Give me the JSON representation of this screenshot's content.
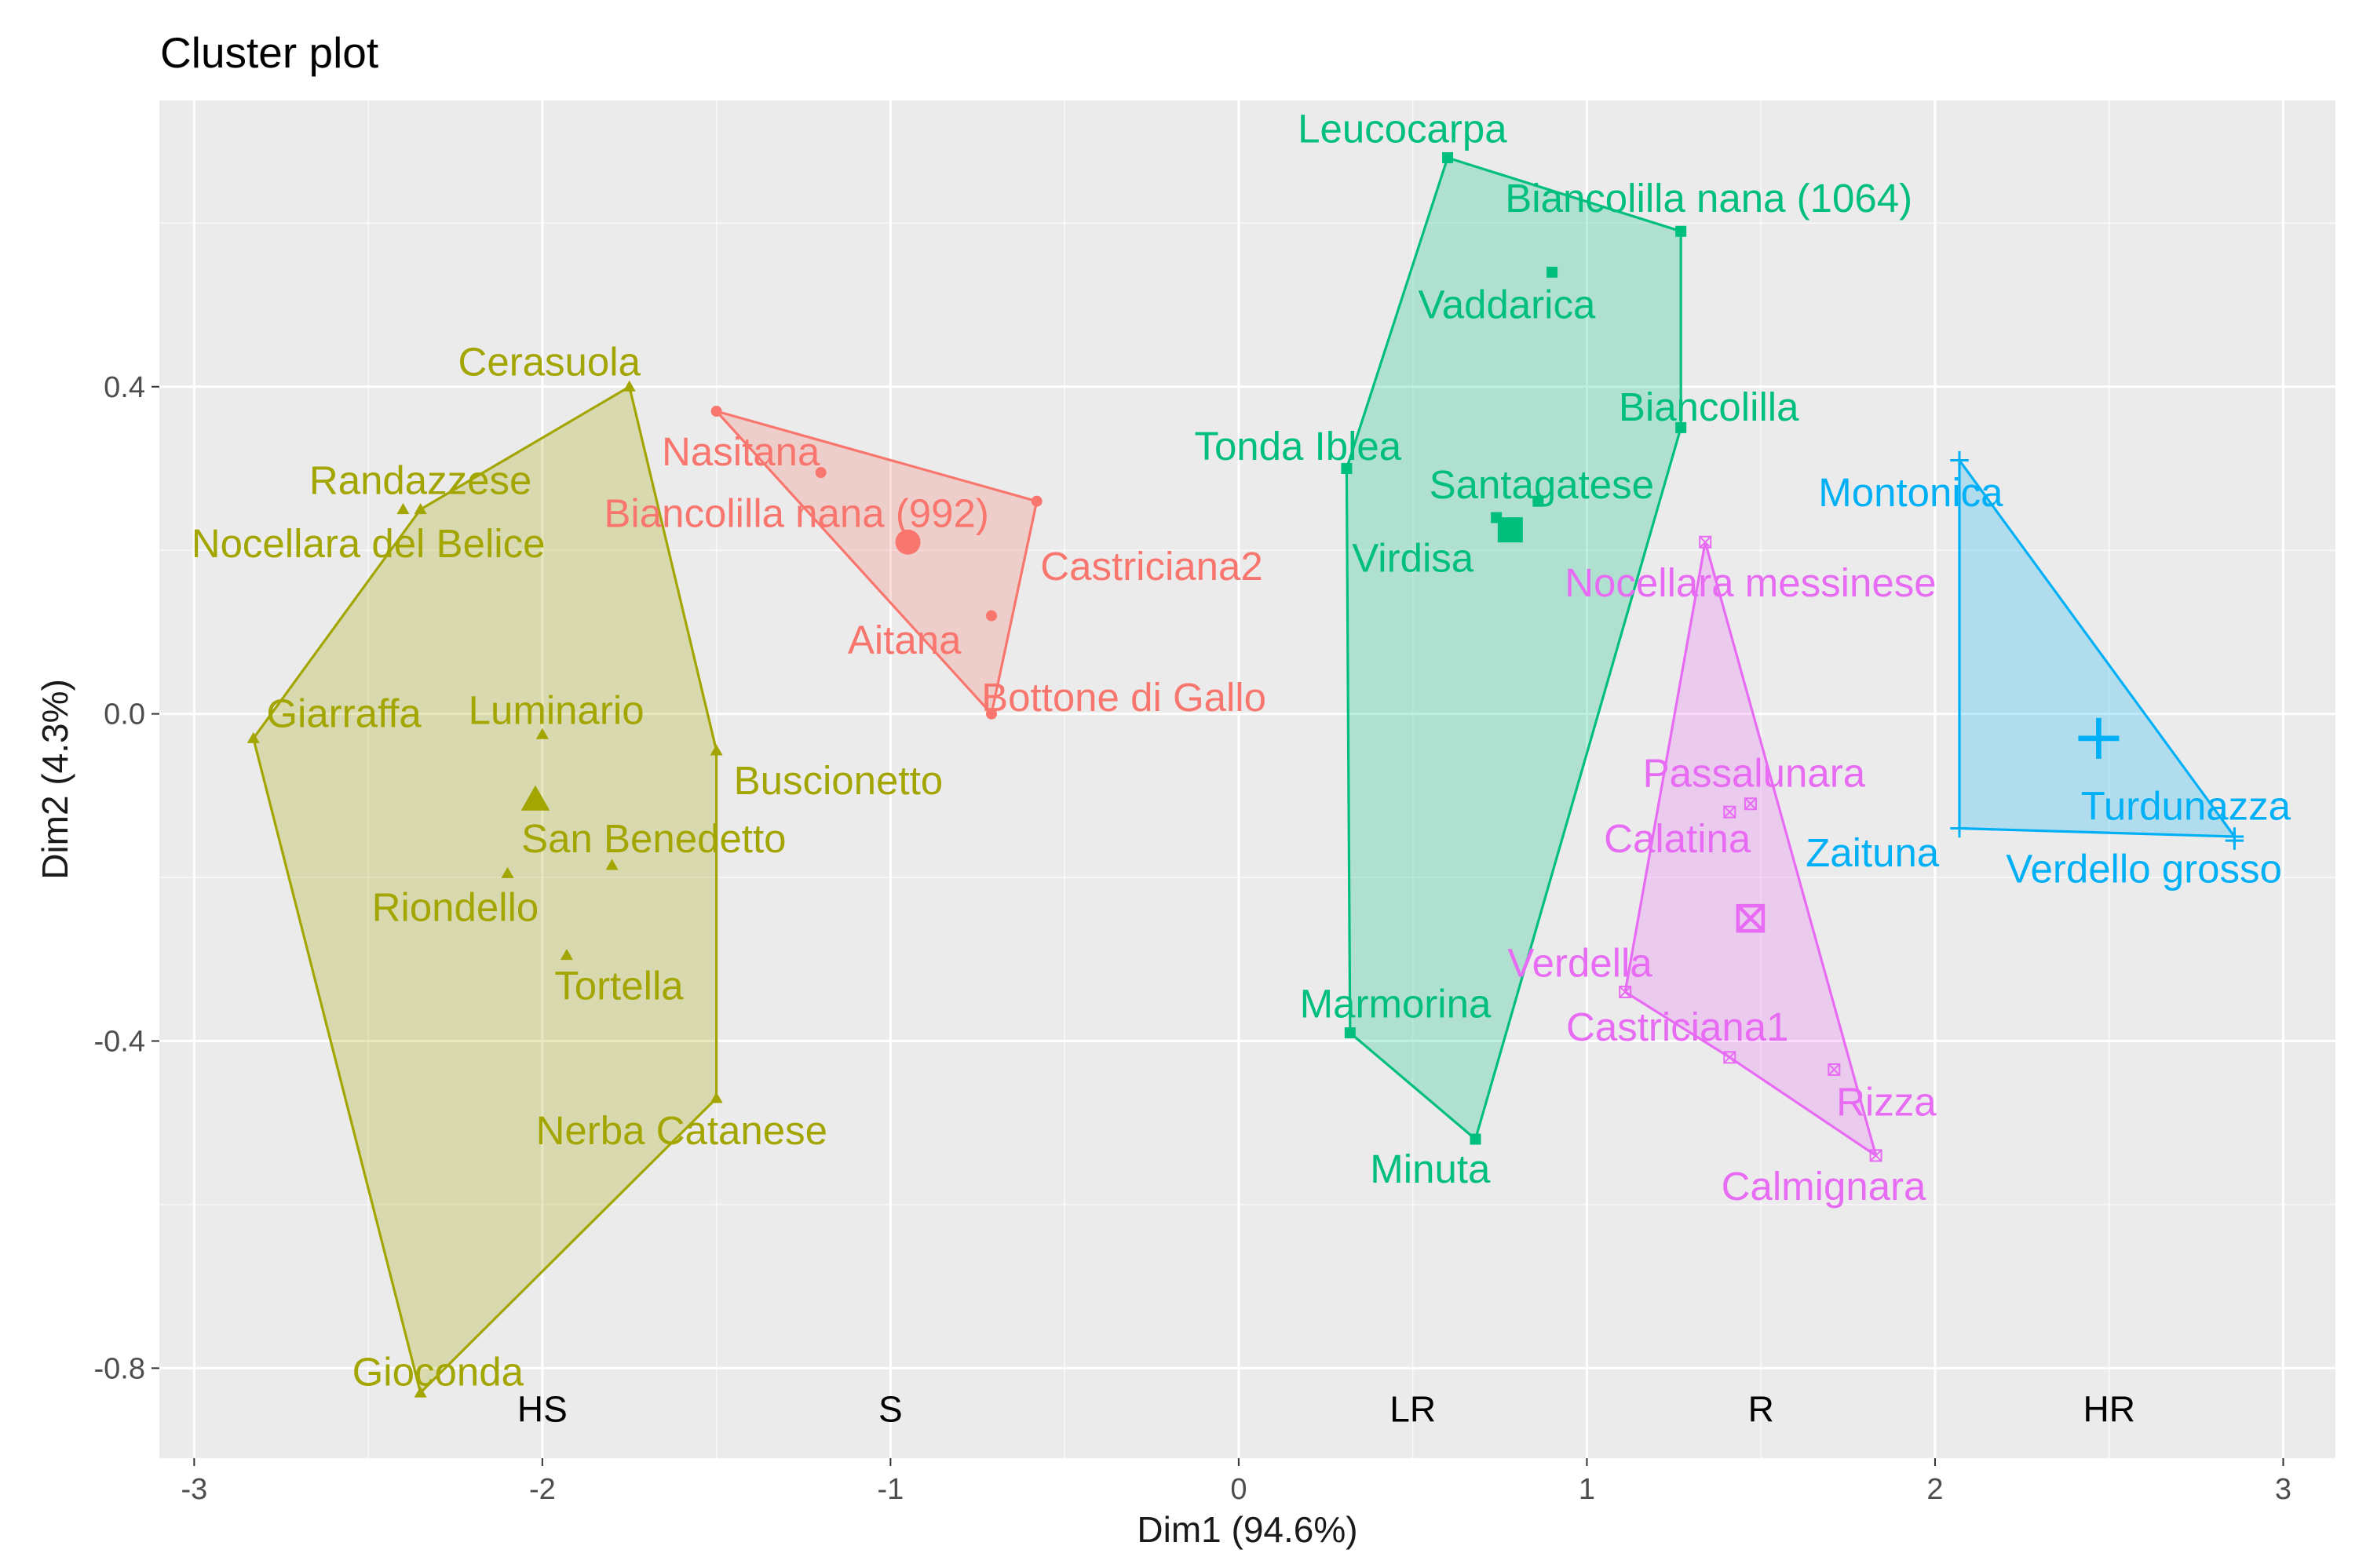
{
  "chart_data": {
    "type": "scatter",
    "title": "Cluster plot",
    "xlabel": "Dim1 (94.6%)",
    "ylabel": "Dim2 (4.3%)",
    "xlim": [
      -3.1,
      3.15
    ],
    "ylim": [
      -0.91,
      0.75
    ],
    "xticks": [
      -3,
      -2,
      -1,
      0,
      1,
      2,
      3
    ],
    "xtick_labels": [
      "-3",
      "-2",
      "-1",
      "0",
      "1",
      "2",
      "3"
    ],
    "yticks": [
      -0.8,
      -0.4,
      0.0,
      0.4
    ],
    "ytick_labels": [
      "-0.8",
      "-0.4",
      "0.0",
      "0.4"
    ],
    "grid": true,
    "band_labels": [
      {
        "text": "HS",
        "x": -2.0,
        "y": -0.85
      },
      {
        "text": "S",
        "x": -1.0,
        "y": -0.85
      },
      {
        "text": "LR",
        "x": 0.5,
        "y": -0.85
      },
      {
        "text": "R",
        "x": 1.5,
        "y": -0.85
      },
      {
        "text": "HR",
        "x": 2.5,
        "y": -0.85
      }
    ],
    "clusters": [
      {
        "name": "HS",
        "color": "#A3A500",
        "marker": "triangle",
        "centroid": [
          -2.02,
          -0.105
        ],
        "hull": [
          [
            -2.83,
            -0.03
          ],
          [
            -2.35,
            -0.83
          ],
          [
            -1.5,
            -0.47
          ],
          [
            -1.5,
            -0.045
          ],
          [
            -1.75,
            0.4
          ],
          [
            -2.35,
            0.25
          ]
        ],
        "points": [
          {
            "label": "Cerasuola",
            "x": -1.75,
            "y": 0.4,
            "lx": -1.98,
            "ly": 0.43
          },
          {
            "label": "Randazzese",
            "x": -2.35,
            "y": 0.25,
            "lx": -2.35,
            "ly": 0.285
          },
          {
            "label": "Nocellara del Belice",
            "x": -2.4,
            "y": 0.25,
            "lx": -2.5,
            "ly": 0.208
          },
          {
            "label": "Giarraffa",
            "x": -2.83,
            "y": -0.03,
            "lx": -2.57,
            "ly": 0.0
          },
          {
            "label": "Luminario",
            "x": -2.0,
            "y": -0.025,
            "lx": -1.96,
            "ly": 0.004
          },
          {
            "label": "Buscionetto",
            "x": -1.5,
            "y": -0.045,
            "lx": -1.15,
            "ly": -0.082
          },
          {
            "label": "San Benedetto",
            "x": -1.8,
            "y": -0.185,
            "lx": -1.68,
            "ly": -0.153
          },
          {
            "label": "Riondello",
            "x": -2.1,
            "y": -0.195,
            "lx": -2.25,
            "ly": -0.237
          },
          {
            "label": "Tortella",
            "x": -1.93,
            "y": -0.295,
            "lx": -1.78,
            "ly": -0.333
          },
          {
            "label": "Nerba Catanese",
            "x": -1.5,
            "y": -0.47,
            "lx": -1.6,
            "ly": -0.51
          },
          {
            "label": "Gioconda",
            "x": -2.35,
            "y": -0.83,
            "lx": -2.3,
            "ly": -0.805
          }
        ]
      },
      {
        "name": "S",
        "color": "#F8766D",
        "marker": "circle",
        "centroid": [
          -0.95,
          0.21
        ],
        "hull": [
          [
            -1.5,
            0.37
          ],
          [
            -0.58,
            0.26
          ],
          [
            -0.71,
            0.0
          ]
        ],
        "points": [
          {
            "label": "Nasitana",
            "x": -1.5,
            "y": 0.37,
            "lx": -1.43,
            "ly": 0.32
          },
          {
            "label": "Biancolilla nana (992)",
            "x": -1.2,
            "y": 0.295,
            "lx": -1.27,
            "ly": 0.245
          },
          {
            "label": "Castriciana2",
            "x": -0.58,
            "y": 0.26,
            "lx": -0.25,
            "ly": 0.18
          },
          {
            "label": "Aitana",
            "x": -0.71,
            "y": 0.12,
            "lx": -0.96,
            "ly": 0.09
          },
          {
            "label": "Bottone di Gallo",
            "x": -0.71,
            "y": 0.0,
            "lx": -0.33,
            "ly": 0.02
          }
        ]
      },
      {
        "name": "LR",
        "color": "#00BF7D",
        "marker": "square",
        "centroid": [
          0.78,
          0.225
        ],
        "hull": [
          [
            0.31,
            0.3
          ],
          [
            0.6,
            0.68
          ],
          [
            1.27,
            0.59
          ],
          [
            1.27,
            0.35
          ],
          [
            0.68,
            -0.52
          ],
          [
            0.32,
            -0.39
          ]
        ],
        "points": [
          {
            "label": "Leucocarpa",
            "x": 0.6,
            "y": 0.68,
            "lx": 0.47,
            "ly": 0.715
          },
          {
            "label": "Biancolilla nana (1064)",
            "x": 1.27,
            "y": 0.59,
            "lx": 1.35,
            "ly": 0.63
          },
          {
            "label": "Vaddarica",
            "x": 0.9,
            "y": 0.54,
            "lx": 0.77,
            "ly": 0.5
          },
          {
            "label": "Biancolilla",
            "x": 1.27,
            "y": 0.35,
            "lx": 1.35,
            "ly": 0.375
          },
          {
            "label": "Tonda Iblea",
            "x": 0.31,
            "y": 0.3,
            "lx": 0.17,
            "ly": 0.327
          },
          {
            "label": "Santagatese",
            "x": 0.86,
            "y": 0.26,
            "lx": 0.87,
            "ly": 0.28
          },
          {
            "label": "Virdisa",
            "x": 0.74,
            "y": 0.24,
            "lx": 0.5,
            "ly": 0.19
          },
          {
            "label": "Marmorina",
            "x": 0.32,
            "y": -0.39,
            "lx": 0.45,
            "ly": -0.355
          },
          {
            "label": "Minuta",
            "x": 0.68,
            "y": -0.52,
            "lx": 0.55,
            "ly": -0.557
          }
        ]
      },
      {
        "name": "R",
        "color": "#E76BF3",
        "marker": "boxed-x",
        "centroid": [
          1.47,
          -0.25
        ],
        "hull": [
          [
            1.34,
            0.21
          ],
          [
            1.83,
            -0.54
          ],
          [
            1.41,
            -0.42
          ],
          [
            1.11,
            -0.34
          ]
        ],
        "points": [
          {
            "label": "Nocellara messinese",
            "x": 1.34,
            "y": 0.21,
            "lx": 1.47,
            "ly": 0.16
          },
          {
            "label": "Passalunara",
            "x": 1.47,
            "y": -0.11,
            "lx": 1.48,
            "ly": -0.073
          },
          {
            "label": "Calatina",
            "x": 1.41,
            "y": -0.12,
            "lx": 1.26,
            "ly": -0.153
          },
          {
            "label": "Verdella",
            "x": 1.11,
            "y": -0.34,
            "lx": 0.98,
            "ly": -0.305
          },
          {
            "label": "Castriciana1",
            "x": 1.41,
            "y": -0.42,
            "lx": 1.26,
            "ly": -0.383
          },
          {
            "label": "Rizza",
            "x": 1.71,
            "y": -0.435,
            "lx": 1.86,
            "ly": -0.475
          },
          {
            "label": "Calmignara",
            "x": 1.83,
            "y": -0.54,
            "lx": 1.68,
            "ly": -0.578
          }
        ]
      },
      {
        "name": "HR",
        "color": "#00B0F6",
        "marker": "plus",
        "centroid": [
          2.47,
          -0.03
        ],
        "hull": [
          [
            2.07,
            0.31
          ],
          [
            2.86,
            -0.15
          ],
          [
            2.07,
            -0.14
          ]
        ],
        "points": [
          {
            "label": "Montonica",
            "x": 2.07,
            "y": 0.31,
            "lx": 1.93,
            "ly": 0.27
          },
          {
            "label": "Turdunazza",
            "x": 2.86,
            "y": -0.15,
            "lx": 2.72,
            "ly": -0.113
          },
          {
            "label": "Zaituna",
            "x": 2.07,
            "y": -0.14,
            "lx": 1.82,
            "ly": -0.17
          },
          {
            "label": "Verdello grosso",
            "x": 2.86,
            "y": -0.155,
            "lx": 2.6,
            "ly": -0.19
          }
        ]
      }
    ]
  }
}
